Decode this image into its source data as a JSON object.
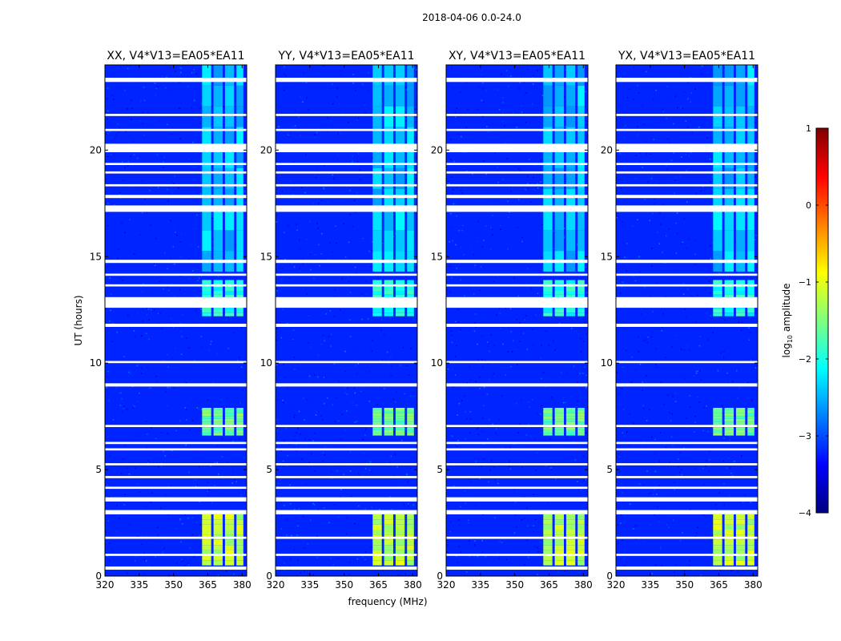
{
  "figure": {
    "suptitle": "2018-04-06 0.0-24.0",
    "xlabel": "frequency (MHz)",
    "ylabel": "UT (hours)"
  },
  "colorbar": {
    "label": "log",
    "label_sub": "10",
    "label_suffix": " amplitude",
    "min": -4,
    "max": 1,
    "ticks": [
      1,
      0,
      -1,
      -2,
      -3,
      -4
    ],
    "tick_labels": [
      "1",
      "0",
      "−1",
      "−2",
      "−3",
      "−4"
    ],
    "colormap": "jet",
    "colors": [
      "#00007f",
      "#0000ff",
      "#007fff",
      "#00ffff",
      "#7fff7f",
      "#ffff00",
      "#ff7f00",
      "#ff0000",
      "#7f0000"
    ]
  },
  "chart_data": [
    {
      "type": "heatmap",
      "title": "XX, V4*V13=EA05*EA11",
      "xlim": [
        320,
        382
      ],
      "ylim": [
        0,
        24
      ],
      "xticks": [
        320,
        335,
        350,
        365,
        380
      ],
      "yticks": [
        0,
        5,
        10,
        15,
        20
      ],
      "ylabel": "UT (hours)"
    },
    {
      "type": "heatmap",
      "title": "YY, V4*V13=EA05*EA11",
      "xlim": [
        320,
        382
      ],
      "ylim": [
        0,
        24
      ],
      "xticks": [
        320,
        335,
        350,
        365,
        380
      ],
      "yticks": [
        0,
        5,
        10,
        15,
        20
      ],
      "xlabel": "frequency (MHz)"
    },
    {
      "type": "heatmap",
      "title": "XY, V4*V13=EA05*EA11",
      "xlim": [
        320,
        382
      ],
      "ylim": [
        0,
        24
      ],
      "xticks": [
        320,
        335,
        350,
        365,
        380
      ],
      "yticks": [
        0,
        5,
        10,
        15,
        20
      ]
    },
    {
      "type": "heatmap",
      "title": "YX, V4*V13=EA05*EA11",
      "xlim": [
        320,
        382
      ],
      "ylim": [
        0,
        24
      ],
      "xticks": [
        320,
        335,
        350,
        365,
        380
      ],
      "yticks": [
        0,
        5,
        10,
        15,
        20
      ]
    }
  ],
  "features": {
    "background_log_amp": -3.2,
    "rfi_bands_mhz": [
      [
        362.5,
        366.5
      ],
      [
        367.5,
        371.5
      ],
      [
        372.5,
        376.5
      ],
      [
        377.5,
        380.5
      ]
    ],
    "rfi_episodes": [
      {
        "t": [
          0.5,
          2.9
        ],
        "log_amp": -1.2
      },
      {
        "t": [
          6.6,
          7.9
        ],
        "log_amp": -1.6
      },
      {
        "t": [
          12.2,
          13.9
        ],
        "log_amp": -2.0
      },
      {
        "t": [
          14.3,
          24.0
        ],
        "log_amp": -2.4
      }
    ],
    "flagged_hours": [
      [
        0.3,
        0.45
      ],
      [
        0.95,
        1.05
      ],
      [
        1.75,
        1.85
      ],
      [
        2.9,
        3.1
      ],
      [
        3.5,
        3.7
      ],
      [
        4.1,
        4.2
      ],
      [
        4.6,
        4.7
      ],
      [
        5.2,
        5.3
      ],
      [
        5.9,
        6.0
      ],
      [
        6.2,
        6.3
      ],
      [
        7.0,
        7.1
      ],
      [
        8.9,
        9.05
      ],
      [
        10.0,
        10.1
      ],
      [
        11.7,
        11.85
      ],
      [
        12.6,
        13.1
      ],
      [
        13.6,
        13.7
      ],
      [
        14.1,
        14.2
      ],
      [
        14.7,
        14.85
      ],
      [
        17.1,
        17.4
      ],
      [
        17.75,
        17.9
      ],
      [
        18.3,
        18.4
      ],
      [
        18.9,
        19.0
      ],
      [
        19.3,
        19.4
      ],
      [
        19.9,
        20.3
      ],
      [
        20.9,
        21.0
      ],
      [
        21.6,
        21.7
      ],
      [
        23.2,
        23.4
      ]
    ]
  }
}
